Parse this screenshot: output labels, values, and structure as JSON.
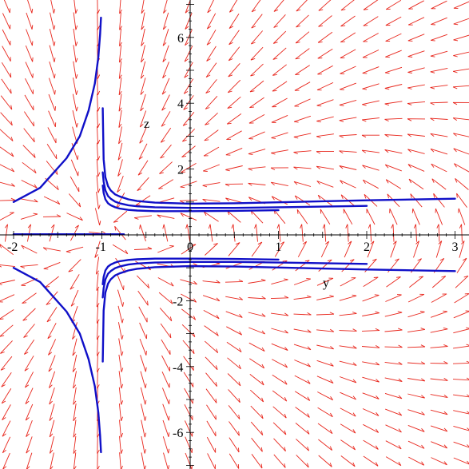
{
  "chart_data": {
    "type": "line",
    "subtype": "direction-field-with-solution-curves",
    "xlabel": "y",
    "ylabel": "z",
    "xlim": [
      -2,
      3
    ],
    "ylim": [
      -7,
      7
    ],
    "x_ticks": [
      {
        "v": -2,
        "label": "-2"
      },
      {
        "v": -1,
        "label": "-1"
      },
      {
        "v": 0,
        "label": "0"
      },
      {
        "v": 1,
        "label": "1"
      },
      {
        "v": 2,
        "label": "2"
      },
      {
        "v": 3,
        "label": "3"
      }
    ],
    "y_ticks": [
      {
        "v": -6,
        "label": "-6"
      },
      {
        "v": -4,
        "label": "-4"
      },
      {
        "v": -2,
        "label": "-2"
      },
      {
        "v": 2,
        "label": "2"
      },
      {
        "v": 4,
        "label": "4"
      },
      {
        "v": 6,
        "label": "6"
      }
    ],
    "field_color": "#e8261c",
    "curve_color": "#1010c8",
    "axis_color": "#000000",
    "grid": false,
    "series": [
      {
        "x": [
          -2,
          -1.7,
          -1.4,
          -1.25,
          -1.15,
          -1.08,
          -1.04,
          -1.02,
          -1.01
        ],
        "y": [
          1.0,
          1.43,
          2.33,
          3.0,
          3.78,
          4.6,
          5.4,
          6.1,
          6.6
        ]
      },
      {
        "x": [
          -0.99,
          -0.98,
          -0.96,
          -0.93,
          -0.9,
          -0.85,
          -0.8,
          -0.7,
          -0.6,
          -0.4,
          0,
          0.5,
          1,
          2,
          3
        ],
        "y": [
          3.85,
          2.3,
          1.75,
          1.48,
          1.35,
          1.23,
          1.17,
          1.08,
          1.03,
          0.98,
          0.95,
          0.96,
          0.99,
          1.05,
          1.1
        ]
      },
      {
        "x": [
          -0.99,
          -0.98,
          -0.96,
          -0.93,
          -0.9,
          -0.85,
          -0.8,
          -0.7,
          -0.6,
          -0.4,
          0,
          0.5,
          1,
          1.5,
          2
        ],
        "y": [
          1.9,
          1.62,
          1.35,
          1.18,
          1.1,
          1.01,
          0.96,
          0.9,
          0.87,
          0.84,
          0.82,
          0.82,
          0.84,
          0.86,
          0.88
        ]
      },
      {
        "x": [
          -0.99,
          -0.98,
          -0.96,
          -0.93,
          -0.9,
          -0.85,
          -0.8,
          -0.7,
          -0.6,
          -0.4,
          0,
          0.5,
          1
        ],
        "y": [
          1.5,
          1.28,
          1.08,
          0.96,
          0.9,
          0.84,
          0.8,
          0.76,
          0.74,
          0.72,
          0.72,
          0.73,
          0.75
        ]
      },
      {
        "x": [
          -2,
          -0.75
        ],
        "y": [
          0.02,
          0.02
        ]
      },
      {
        "x": [
          -2,
          -1.7,
          -1.4,
          -1.25,
          -1.15,
          -1.08,
          -1.04,
          -1.02,
          -1.01
        ],
        "y": [
          -1.0,
          -1.43,
          -2.33,
          -3.0,
          -3.78,
          -4.6,
          -5.4,
          -6.1,
          -6.6
        ]
      },
      {
        "x": [
          -0.99,
          -0.98,
          -0.96,
          -0.93,
          -0.9,
          -0.85,
          -0.8,
          -0.7,
          -0.6,
          -0.4,
          0,
          0.5,
          1,
          2,
          3
        ],
        "y": [
          -3.85,
          -2.3,
          -1.75,
          -1.48,
          -1.35,
          -1.23,
          -1.17,
          -1.08,
          -1.03,
          -0.98,
          -0.95,
          -0.96,
          -0.99,
          -1.05,
          -1.1
        ]
      },
      {
        "x": [
          -0.99,
          -0.98,
          -0.96,
          -0.93,
          -0.9,
          -0.85,
          -0.8,
          -0.7,
          -0.6,
          -0.4,
          0,
          0.5,
          1,
          1.5,
          2
        ],
        "y": [
          -1.9,
          -1.62,
          -1.35,
          -1.18,
          -1.1,
          -1.01,
          -0.96,
          -0.9,
          -0.87,
          -0.84,
          -0.82,
          -0.82,
          -0.84,
          -0.86,
          -0.88
        ]
      },
      {
        "x": [
          -0.99,
          -0.98,
          -0.96,
          -0.93,
          -0.9,
          -0.85,
          -0.8,
          -0.7,
          -0.6,
          -0.4,
          0,
          0.5,
          1
        ],
        "y": [
          -1.5,
          -1.28,
          -1.08,
          -0.96,
          -0.9,
          -0.84,
          -0.8,
          -0.76,
          -0.74,
          -0.72,
          -0.72,
          -0.73,
          -0.75
        ]
      }
    ]
  }
}
